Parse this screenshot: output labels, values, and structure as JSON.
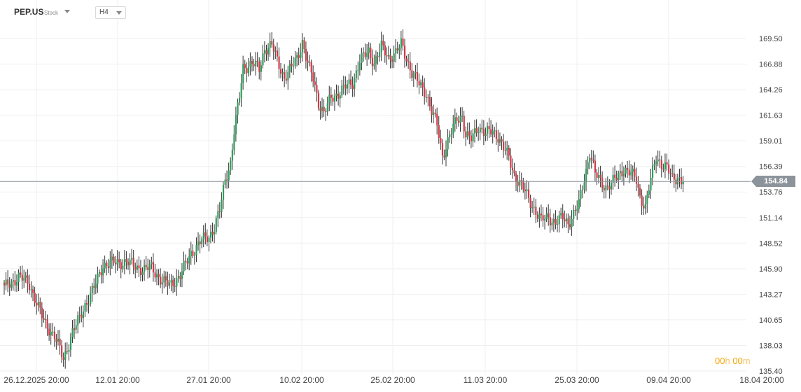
{
  "header": {
    "symbol": "PEP.US",
    "symbol_type": "Stock",
    "timeframe": "H4"
  },
  "countdown": {
    "h_value": "00",
    "h_unit": "h",
    "m_value": "00",
    "m_unit": "m"
  },
  "colors": {
    "up": "#2e9e5a",
    "down": "#d13a46",
    "grid": "#efefef",
    "last_price_line": "#8c939b",
    "countdown": "#f5a300"
  },
  "chart_data": {
    "type": "candlestick",
    "symbol": "PEP.US",
    "timeframe": "H4",
    "last_price": 154.84,
    "last_price_label": "154.84",
    "y_ticks": [
      "169.50",
      "166.88",
      "164.26",
      "161.63",
      "159.01",
      "156.39",
      "153.76",
      "151.14",
      "148.52",
      "145.90",
      "143.27",
      "140.65",
      "138.03",
      "135.40"
    ],
    "x_ticks": [
      "26.12.2025 20:00",
      "12.01 20:00",
      "27.01 20:00",
      "10.02 20:00",
      "25.02 20:00",
      "11.03 20:00",
      "25.03 20:00",
      "09.04 20:00",
      "18.04 20:00"
    ],
    "ylim": [
      135.4,
      169.5
    ],
    "grid": true,
    "close_path": [
      [
        0,
        143.9
      ],
      [
        8,
        145.1
      ],
      [
        14,
        144.3
      ],
      [
        22,
        140.5
      ],
      [
        28,
        139.0
      ],
      [
        33,
        136.6
      ],
      [
        38,
        139.4
      ],
      [
        42,
        140.8
      ],
      [
        45,
        142.2
      ],
      [
        50,
        143.9
      ],
      [
        55,
        146.3
      ],
      [
        62,
        146.5
      ],
      [
        68,
        146.6
      ],
      [
        72,
        146.2
      ],
      [
        78,
        145.8
      ],
      [
        82,
        146.0
      ],
      [
        88,
        144.6
      ],
      [
        92,
        144.2
      ],
      [
        98,
        145.2
      ],
      [
        104,
        147.5
      ],
      [
        110,
        148.8
      ],
      [
        114,
        149.2
      ],
      [
        117,
        150.2
      ],
      [
        120,
        151.8
      ],
      [
        123,
        155.0
      ],
      [
        126,
        156.8
      ],
      [
        128,
        160.0
      ],
      [
        131,
        163.5
      ],
      [
        133,
        166.5
      ],
      [
        138,
        167.0
      ],
      [
        142,
        166.3
      ],
      [
        145,
        168.5
      ],
      [
        149,
        168.8
      ],
      [
        152,
        167.2
      ],
      [
        156,
        165.5
      ],
      [
        160,
        166.5
      ],
      [
        163,
        167.5
      ],
      [
        166,
        169.2
      ],
      [
        169,
        166.8
      ],
      [
        172,
        165.4
      ],
      [
        175,
        163.0
      ],
      [
        178,
        161.8
      ],
      [
        182,
        163.4
      ],
      [
        186,
        163.9
      ],
      [
        190,
        164.5
      ],
      [
        194,
        165.0
      ],
      [
        198,
        167.2
      ],
      [
        203,
        168.2
      ],
      [
        206,
        167.0
      ],
      [
        210,
        168.6
      ],
      [
        214,
        167.6
      ],
      [
        218,
        168.0
      ],
      [
        221,
        168.9
      ],
      [
        224,
        167.5
      ],
      [
        227,
        166.0
      ],
      [
        231,
        164.8
      ],
      [
        235,
        163.9
      ],
      [
        238,
        162.0
      ],
      [
        241,
        160.6
      ],
      [
        244,
        157.5
      ],
      [
        248,
        159.5
      ],
      [
        252,
        161.2
      ],
      [
        255,
        161.6
      ],
      [
        257,
        159.6
      ],
      [
        260,
        159.1
      ],
      [
        264,
        160.5
      ],
      [
        268,
        159.8
      ],
      [
        272,
        159.9
      ],
      [
        275,
        159.5
      ],
      [
        278,
        158.3
      ],
      [
        281,
        157.2
      ],
      [
        284,
        155.5
      ],
      [
        288,
        154.5
      ],
      [
        292,
        153.0
      ],
      [
        296,
        151.8
      ],
      [
        299,
        150.8
      ],
      [
        303,
        151.2
      ],
      [
        307,
        150.6
      ],
      [
        311,
        151.1
      ],
      [
        314,
        150.6
      ],
      [
        317,
        151.5
      ],
      [
        320,
        152.5
      ],
      [
        322,
        154.3
      ],
      [
        324,
        156.0
      ],
      [
        326,
        157.9
      ],
      [
        329,
        155.6
      ],
      [
        332,
        154.8
      ],
      [
        335,
        154.3
      ],
      [
        338,
        154.6
      ],
      [
        341,
        155.2
      ],
      [
        345,
        156.2
      ],
      [
        349,
        155.6
      ],
      [
        352,
        155.0
      ],
      [
        354,
        153.3
      ],
      [
        357,
        152.2
      ],
      [
        360,
        155.0
      ],
      [
        363,
        157.5
      ],
      [
        366,
        156.6
      ],
      [
        369,
        156.1
      ],
      [
        372,
        155.2
      ],
      [
        375,
        155.3
      ],
      [
        378,
        154.6
      ]
    ]
  }
}
